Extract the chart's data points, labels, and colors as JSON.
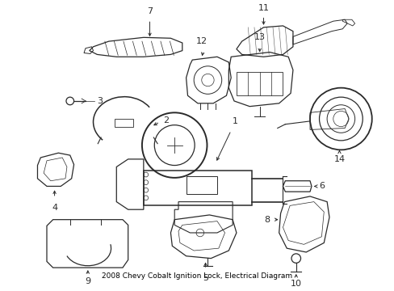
{
  "title": "2008 Chevy Cobalt Ignition Lock, Electrical Diagram",
  "bg_color": "#ffffff",
  "line_color": "#2a2a2a",
  "label_color": "#000000",
  "fig_width": 4.89,
  "fig_height": 3.6,
  "dpi": 100
}
